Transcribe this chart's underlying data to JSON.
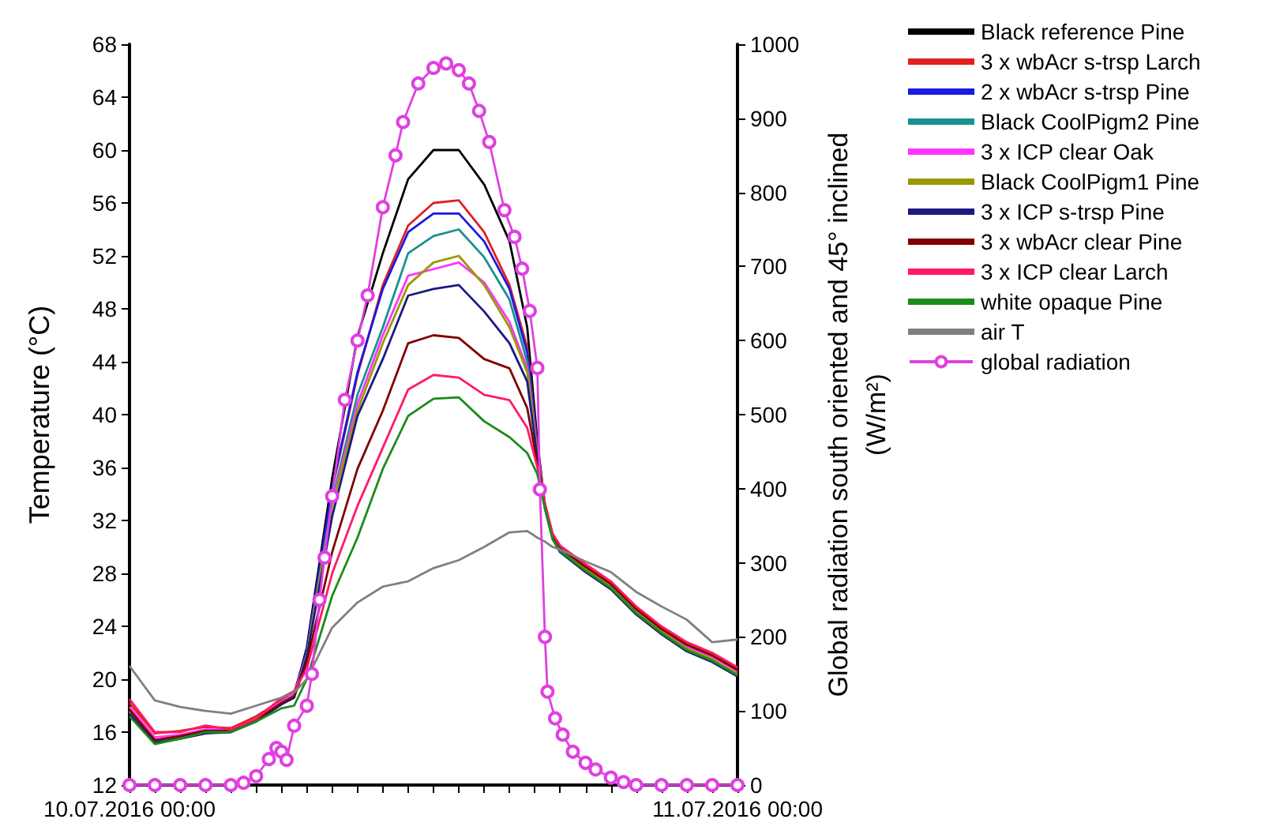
{
  "chart_data": {
    "type": "line",
    "ylabel": "Temperature (°C)",
    "y2label": "Global radiation south oriented and 45° inclined (W/m²)",
    "x": [
      "2016-07-10T00:00",
      "2016-07-10T01:00",
      "2016-07-10T02:00",
      "2016-07-10T03:00",
      "2016-07-10T04:00",
      "2016-07-10T05:00",
      "2016-07-10T06:00",
      "2016-07-10T06:30",
      "2016-07-10T07:00",
      "2016-07-10T08:00",
      "2016-07-10T09:00",
      "2016-07-10T10:00",
      "2016-07-10T11:00",
      "2016-07-10T12:00",
      "2016-07-10T13:00",
      "2016-07-10T14:00",
      "2016-07-10T15:00",
      "2016-07-10T15:42",
      "2016-07-10T16:06",
      "2016-07-10T16:24",
      "2016-07-10T16:42",
      "2016-07-10T17:00",
      "2016-07-10T18:00",
      "2016-07-10T19:00",
      "2016-07-10T20:00",
      "2016-07-10T21:00",
      "2016-07-10T22:00",
      "2016-07-10T23:00",
      "2016-07-11T00:00"
    ],
    "xlim": [
      "2016-07-10T00:00",
      "2016-07-11T00:00"
    ],
    "xticks": [
      {
        "value": "2016-07-10T00:00",
        "label": "10.07.2016 00:00"
      },
      {
        "value": "2016-07-10T01:00",
        "label": null
      },
      {
        "value": "2016-07-10T02:00",
        "label": null
      },
      {
        "value": "2016-07-10T03:00",
        "label": null
      },
      {
        "value": "2016-07-10T04:00",
        "label": null
      },
      {
        "value": "2016-07-10T05:00",
        "label": null
      },
      {
        "value": "2016-07-10T06:00",
        "label": null
      },
      {
        "value": "2016-07-10T07:00",
        "label": null
      },
      {
        "value": "2016-07-10T08:00",
        "label": null
      },
      {
        "value": "2016-07-10T09:00",
        "label": null
      },
      {
        "value": "2016-07-10T10:00",
        "label": null
      },
      {
        "value": "2016-07-10T11:00",
        "label": null
      },
      {
        "value": "2016-07-10T12:00",
        "label": null
      },
      {
        "value": "2016-07-10T13:00",
        "label": null
      },
      {
        "value": "2016-07-10T14:00",
        "label": null
      },
      {
        "value": "2016-07-10T15:00",
        "label": null
      },
      {
        "value": "2016-07-10T16:00",
        "label": null
      },
      {
        "value": "2016-07-10T17:00",
        "label": null
      },
      {
        "value": "2016-07-10T18:00",
        "label": null
      },
      {
        "value": "2016-07-10T19:00",
        "label": null
      },
      {
        "value": "2016-07-10T20:00",
        "label": null
      },
      {
        "value": "2016-07-10T21:00",
        "label": null
      },
      {
        "value": "2016-07-10T22:00",
        "label": null
      },
      {
        "value": "2016-07-10T23:00",
        "label": null
      },
      {
        "value": "2016-07-11T00:00",
        "label": "11.07.2016 00:00"
      }
    ],
    "ylim": [
      12,
      68
    ],
    "yticks": [
      12,
      16,
      20,
      24,
      28,
      32,
      36,
      40,
      44,
      48,
      52,
      56,
      60,
      64,
      68
    ],
    "y2lim": [
      0,
      1000
    ],
    "y2ticks": [
      0,
      100,
      200,
      300,
      400,
      500,
      600,
      700,
      800,
      900,
      1000
    ],
    "grid": false,
    "legend": "right",
    "marker": "none",
    "series": [
      {
        "name": "Black reference Pine",
        "color": "#000000",
        "values": [
          17.6,
          15.3,
          15.6,
          16.0,
          16.1,
          16.9,
          18.2,
          18.8,
          22.4,
          35.2,
          45.9,
          52.2,
          57.8,
          60.0,
          60.0,
          57.4,
          53.1,
          46.6,
          38.0,
          33.1,
          30.7,
          29.8,
          28.3,
          27.0,
          25.1,
          23.6,
          22.3,
          21.5,
          20.3
        ]
      },
      {
        "name": "3 x wbAcr s-trsp Larch",
        "color": "#e02020",
        "values": [
          18.2,
          15.9,
          16.1,
          16.4,
          16.3,
          17.2,
          18.4,
          19.0,
          22.0,
          34.3,
          43.0,
          49.8,
          54.3,
          56.0,
          56.2,
          53.8,
          49.8,
          45.1,
          37.5,
          33.3,
          31.0,
          30.0,
          28.6,
          27.3,
          25.4,
          23.9,
          22.7,
          21.9,
          20.8
        ]
      },
      {
        "name": "2 x wbAcr s-trsp Pine",
        "color": "#1a1ae0",
        "values": [
          null,
          null,
          null,
          null,
          null,
          null,
          null,
          18.9,
          22.2,
          34.5,
          43.2,
          49.5,
          53.8,
          55.2,
          55.2,
          53.1,
          49.5,
          44.7,
          37.4,
          null,
          null,
          null,
          null,
          null,
          null,
          null,
          null,
          null,
          null
        ]
      },
      {
        "name": "Black CoolPigm2 Pine",
        "color": "#1a9090",
        "values": [
          17.5,
          15.3,
          15.6,
          16.0,
          16.0,
          16.9,
          18.1,
          18.7,
          21.9,
          33.5,
          41.5,
          46.6,
          52.2,
          53.5,
          54.0,
          51.9,
          48.7,
          44.0,
          37.2,
          33.0,
          30.7,
          29.7,
          null,
          null,
          null,
          null,
          null,
          null,
          null
        ]
      },
      {
        "name": "3 x ICP clear Oak",
        "color": "#ff33ff",
        "values": [
          17.9,
          15.6,
          15.8,
          16.2,
          16.2,
          17.0,
          18.3,
          18.9,
          21.8,
          33.3,
          40.8,
          46.0,
          50.5,
          51.0,
          51.5,
          50.0,
          47.0,
          43.5,
          37.0,
          33.1,
          30.8,
          29.9,
          28.4,
          27.1,
          25.2,
          23.7,
          22.5,
          21.7,
          20.6
        ]
      },
      {
        "name": "Black CoolPigm1 Pine",
        "color": "#999900",
        "values": [
          17.6,
          15.4,
          15.7,
          16.0,
          16.1,
          16.9,
          18.2,
          18.7,
          21.8,
          33.1,
          40.3,
          45.4,
          49.8,
          51.5,
          52.0,
          49.8,
          46.6,
          43.2,
          36.9,
          33.0,
          30.7,
          29.8,
          28.3,
          27.0,
          25.1,
          23.6,
          22.3,
          21.5,
          20.4
        ]
      },
      {
        "name": "3 x ICP s-trsp Pine",
        "color": "#1a1a80",
        "values": [
          17.4,
          15.2,
          15.5,
          15.9,
          16.0,
          16.8,
          18.1,
          18.6,
          21.7,
          32.3,
          39.9,
          44.2,
          49.0,
          49.5,
          49.8,
          47.8,
          45.4,
          42.5,
          36.7,
          32.9,
          30.6,
          29.6,
          28.1,
          26.8,
          24.9,
          23.4,
          22.1,
          21.3,
          20.2
        ]
      },
      {
        "name": "3 x wbAcr clear Pine",
        "color": "#800000",
        "values": [
          17.7,
          15.4,
          15.7,
          16.1,
          16.1,
          16.9,
          18.2,
          18.7,
          21.3,
          29.6,
          35.9,
          40.3,
          45.4,
          46.0,
          45.8,
          44.2,
          43.5,
          40.5,
          36.3,
          33.0,
          30.8,
          29.9,
          28.5,
          27.2,
          25.3,
          23.8,
          22.6,
          21.8,
          20.7
        ]
      },
      {
        "name": "3 x ICP clear Larch",
        "color": "#ff1a66",
        "values": [
          18.5,
          16.0,
          16.0,
          16.5,
          16.2,
          17.0,
          18.6,
          19.1,
          20.8,
          28.0,
          33.1,
          37.5,
          41.9,
          43.0,
          42.8,
          41.5,
          41.1,
          39.0,
          36.0,
          33.2,
          31.0,
          30.1,
          28.7,
          27.4,
          25.5,
          24.0,
          22.8,
          22.0,
          20.9
        ]
      },
      {
        "name": "white opaque Pine",
        "color": "#1a8c1a",
        "values": [
          17.2,
          15.1,
          15.5,
          16.0,
          16.0,
          16.8,
          17.8,
          18.0,
          20.0,
          26.3,
          30.7,
          35.9,
          39.9,
          41.2,
          41.3,
          39.5,
          38.3,
          37.1,
          35.5,
          32.9,
          30.6,
          29.7,
          28.2,
          26.9,
          25.0,
          23.5,
          22.2,
          21.4,
          20.3
        ]
      },
      {
        "name": "air T",
        "color": "#808080",
        "values": [
          21.0,
          18.4,
          17.9,
          17.6,
          17.4,
          18.0,
          18.6,
          19.0,
          20.0,
          23.9,
          25.8,
          27.0,
          27.4,
          28.4,
          29.0,
          30.0,
          31.1,
          31.2,
          30.7,
          30.4,
          30.0,
          29.8,
          28.9,
          28.1,
          26.6,
          25.5,
          24.5,
          22.8,
          23.0
        ]
      },
      {
        "name": "global radiation",
        "color": "#e040e0",
        "axis": "y2",
        "marker": "circle",
        "x": [
          "2016-07-10T00:00",
          "2016-07-10T01:00",
          "2016-07-10T02:00",
          "2016-07-10T03:00",
          "2016-07-10T04:00",
          "2016-07-10T04:30",
          "2016-07-10T05:00",
          "2016-07-10T05:30",
          "2016-07-10T05:48",
          "2016-07-10T06:00",
          "2016-07-10T06:12",
          "2016-07-10T06:30",
          "2016-07-10T07:00",
          "2016-07-10T07:12",
          "2016-07-10T07:30",
          "2016-07-10T07:42",
          "2016-07-10T08:00",
          "2016-07-10T08:30",
          "2016-07-10T09:00",
          "2016-07-10T09:24",
          "2016-07-10T10:00",
          "2016-07-10T10:30",
          "2016-07-10T10:48",
          "2016-07-10T11:24",
          "2016-07-10T12:00",
          "2016-07-10T12:30",
          "2016-07-10T13:00",
          "2016-07-10T13:24",
          "2016-07-10T13:48",
          "2016-07-10T14:12",
          "2016-07-10T14:48",
          "2016-07-10T15:12",
          "2016-07-10T15:30",
          "2016-07-10T15:48",
          "2016-07-10T16:06",
          "2016-07-10T16:12",
          "2016-07-10T16:24",
          "2016-07-10T16:30",
          "2016-07-10T16:48",
          "2016-07-10T17:06",
          "2016-07-10T17:30",
          "2016-07-10T18:00",
          "2016-07-10T18:24",
          "2016-07-10T19:00",
          "2016-07-10T19:30",
          "2016-07-10T20:00",
          "2016-07-10T21:00",
          "2016-07-10T22:00",
          "2016-07-10T23:00",
          "2016-07-11T00:00"
        ],
        "values": [
          0,
          0,
          0,
          0,
          0,
          3,
          12,
          35,
          50,
          45,
          34,
          80,
          107,
          150,
          250,
          307,
          390,
          520,
          600,
          661,
          780,
          850,
          895,
          947,
          968,
          974,
          965,
          947,
          910,
          868,
          776,
          740,
          697,
          640,
          563,
          399,
          200,
          126,
          90,
          68,
          45,
          30,
          21,
          10,
          4,
          0,
          0,
          0,
          0,
          0
        ]
      }
    ]
  }
}
